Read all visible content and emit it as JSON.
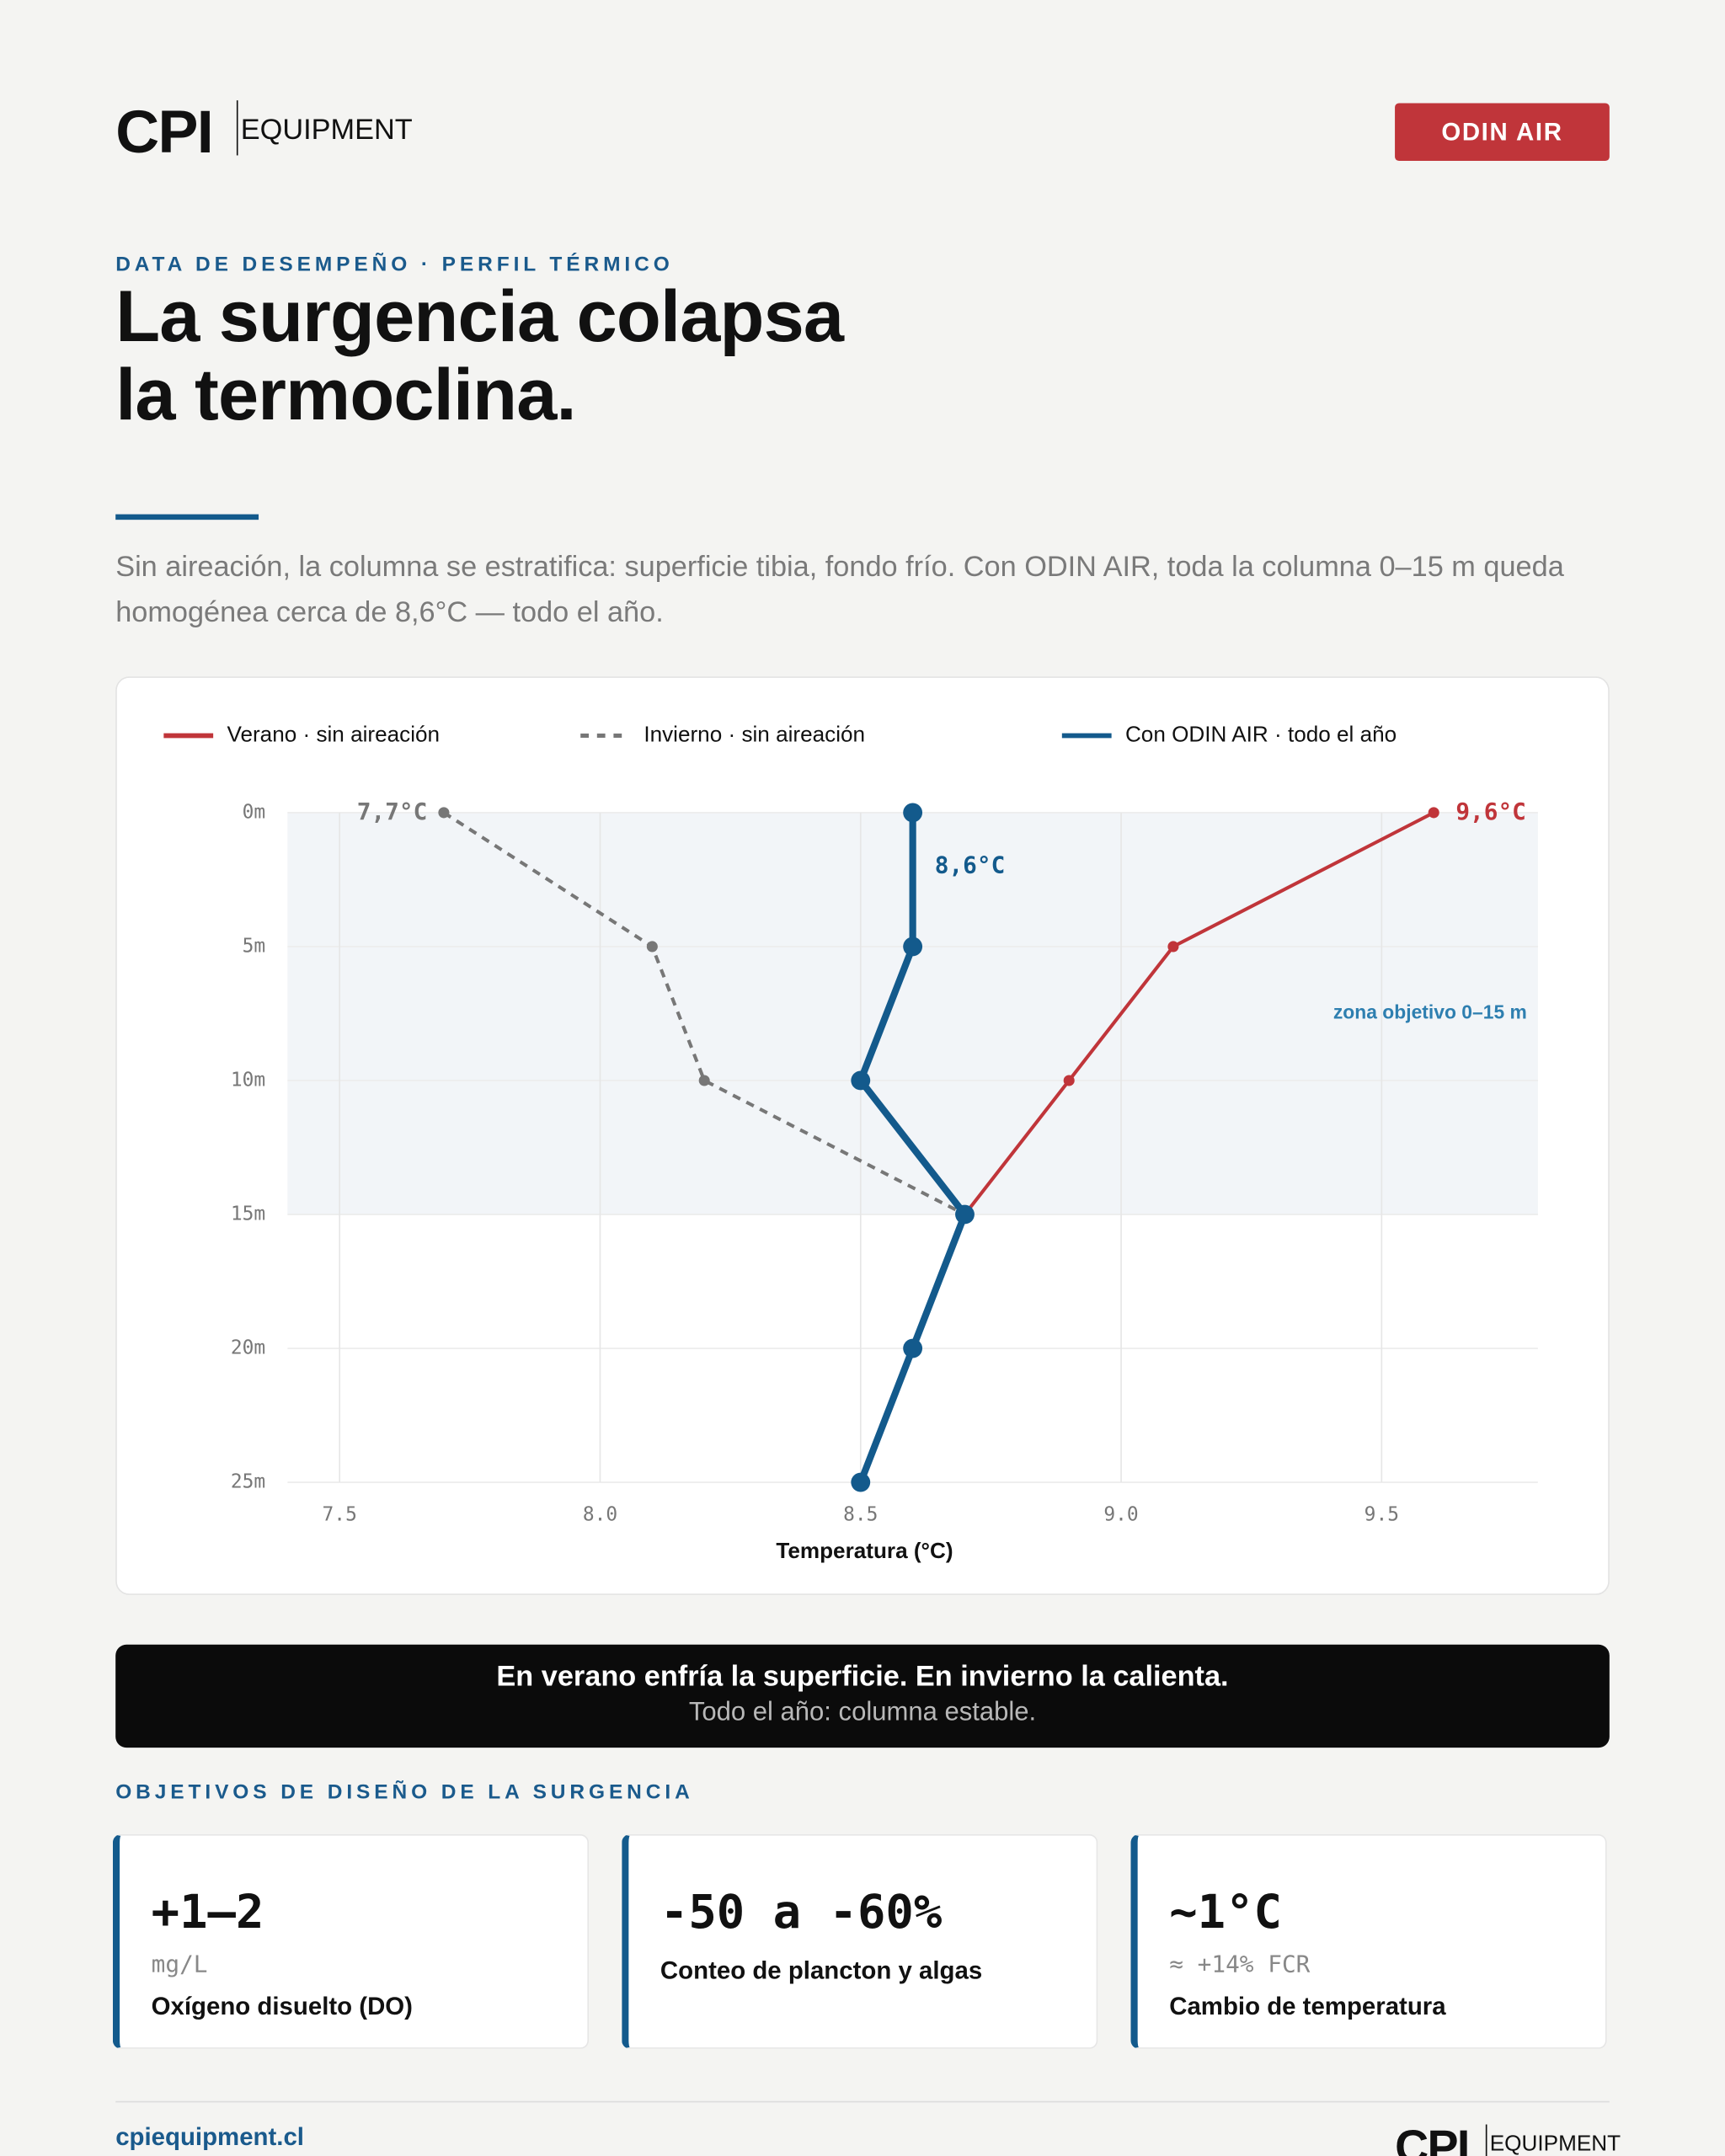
{
  "header": {
    "logo_main": "CPI",
    "logo_sub": "EQUIPMENT",
    "button": "ODIN AIR"
  },
  "eyebrow": "DATA DE DESEMPEÑO · PERFIL TÉRMICO",
  "title_lines": [
    "La surgencia colapsa",
    "la termoclina."
  ],
  "lede": "Sin aireación, la columna se estratifica: superficie tibia, fondo frío. Con ODIN AIR, toda la columna 0–15 m queda homogénea cerca de 8,6°C — todo el año.",
  "chart_data": {
    "type": "line",
    "x_label": "Temperatura (°C)",
    "xlim": [
      7.4,
      9.8
    ],
    "xticks": [
      7.5,
      {
        "value": 8,
        "label": "8.0"
      },
      8.5,
      {
        "value": 9,
        "label": "9.0"
      },
      9.5
    ],
    "ylim": [
      0,
      25
    ],
    "yticks": [
      {
        "value": 0,
        "label": "0m"
      },
      {
        "value": 5,
        "label": "5m"
      },
      {
        "value": 10,
        "label": "10m"
      },
      {
        "value": 15,
        "label": "15m"
      },
      {
        "value": 20,
        "label": "20m"
      },
      {
        "value": 25,
        "label": "25m"
      }
    ],
    "grid": true,
    "zone": [
      0,
      15
    ],
    "zone_label": "zona objetivo 0–15 m",
    "series": [
      {
        "name": "Verano · sin aireación",
        "color": "#c0353a",
        "style": "solid",
        "depths": [
          0,
          5,
          10,
          15
        ],
        "values": [
          9.6,
          9.1,
          8.9,
          8.7
        ]
      },
      {
        "name": "Invierno · sin aireación",
        "color": "#777777",
        "style": "dashed",
        "depths": [
          0,
          5,
          10,
          15
        ],
        "values": [
          7.7,
          8.1,
          8.2,
          8.7
        ]
      },
      {
        "name": "Con ODIN AIR · todo el año",
        "color": "#135a8c",
        "style": "bold",
        "depths": [
          0,
          5,
          10,
          15,
          20,
          25
        ],
        "values": [
          8.6,
          8.6,
          8.5,
          8.7,
          8.6,
          8.5
        ]
      }
    ],
    "annotations": [
      "9,6°C",
      "7,7°C",
      "8,6°C"
    ]
  },
  "banner": {
    "line1": "En verano enfría la superficie. En invierno la calienta.",
    "line2": "Todo el año: columna estable."
  },
  "section_label": "OBJETIVOS DE DISEÑO DE LA SURGENCIA",
  "cards": [
    {
      "value": "+1–2",
      "unit": "mg/L",
      "label": "Oxígeno disuelto (DO)"
    },
    {
      "value": "-50 a -60%",
      "label": "Conteo de plancton y algas"
    },
    {
      "value": "~1°C",
      "unit": "≈ +14% FCR",
      "label": "Cambio de temperatura"
    }
  ],
  "footer": {
    "url": "cpiequipment.cl",
    "logo_main": "CPI",
    "logo_sub": "EQUIPMENT"
  }
}
